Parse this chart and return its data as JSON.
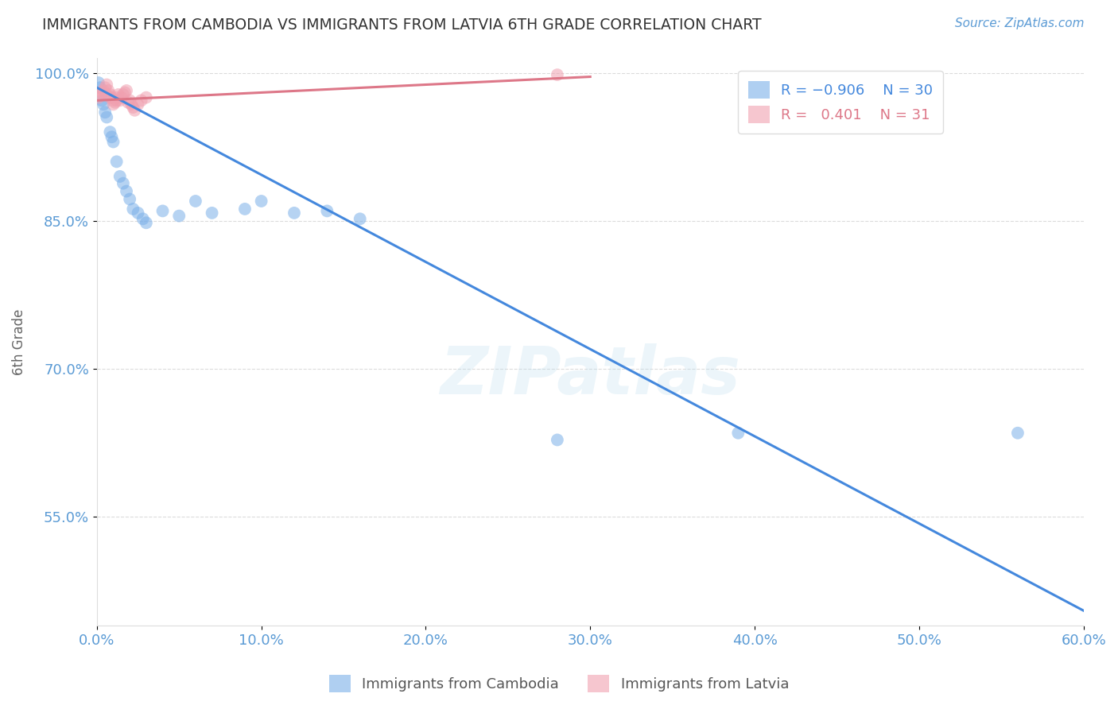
{
  "title": "IMMIGRANTS FROM CAMBODIA VS IMMIGRANTS FROM LATVIA 6TH GRADE CORRELATION CHART",
  "source_text": "Source: ZipAtlas.com",
  "ylabel": "6th Grade",
  "xlim": [
    0.0,
    0.6
  ],
  "ylim": [
    0.44,
    1.015
  ],
  "xticks": [
    0.0,
    0.1,
    0.2,
    0.3,
    0.4,
    0.5,
    0.6
  ],
  "xticklabels": [
    "0.0%",
    "10.0%",
    "20.0%",
    "30.0%",
    "40.0%",
    "50.0%",
    "60.0%"
  ],
  "yticks": [
    0.55,
    0.7,
    0.85,
    1.0
  ],
  "yticklabels": [
    "55.0%",
    "70.0%",
    "85.0%",
    "100.0%"
  ],
  "watermark": "ZIPatlas",
  "cambodia_x": [
    0.001,
    0.002,
    0.003,
    0.004,
    0.005,
    0.006,
    0.008,
    0.009,
    0.01,
    0.012,
    0.014,
    0.016,
    0.018,
    0.02,
    0.022,
    0.025,
    0.028,
    0.03,
    0.04,
    0.05,
    0.06,
    0.07,
    0.09,
    0.1,
    0.12,
    0.14,
    0.16,
    0.28,
    0.39,
    0.56
  ],
  "cambodia_y": [
    0.99,
    0.985,
    0.972,
    0.968,
    0.96,
    0.955,
    0.94,
    0.935,
    0.93,
    0.91,
    0.895,
    0.888,
    0.88,
    0.872,
    0.862,
    0.858,
    0.852,
    0.848,
    0.86,
    0.855,
    0.87,
    0.858,
    0.862,
    0.87,
    0.858,
    0.86,
    0.852,
    0.628,
    0.635,
    0.635
  ],
  "latvia_x": [
    0.001,
    0.002,
    0.003,
    0.004,
    0.005,
    0.006,
    0.007,
    0.008,
    0.009,
    0.01,
    0.011,
    0.012,
    0.013,
    0.014,
    0.015,
    0.016,
    0.017,
    0.018,
    0.019,
    0.02,
    0.021,
    0.022,
    0.023,
    0.025,
    0.027,
    0.03,
    0.28,
    0.01,
    0.012,
    0.008,
    0.006
  ],
  "latvia_y": [
    0.975,
    0.978,
    0.98,
    0.982,
    0.985,
    0.988,
    0.982,
    0.978,
    0.975,
    0.972,
    0.97,
    0.975,
    0.978,
    0.972,
    0.975,
    0.978,
    0.98,
    0.982,
    0.97,
    0.972,
    0.968,
    0.965,
    0.962,
    0.968,
    0.972,
    0.975,
    0.998,
    0.968,
    0.972,
    0.975,
    0.978
  ],
  "blue_color": "#7aafe8",
  "pink_color": "#f0a0b0",
  "blue_line_color": "#4488dd",
  "pink_line_color": "#dd7788",
  "background_color": "#ffffff",
  "grid_color": "#cccccc",
  "tick_label_color": "#5b9bd5",
  "title_color": "#333333",
  "ylabel_color": "#666666",
  "blue_line_x0": 0.0,
  "blue_line_y0": 0.985,
  "blue_line_x1": 0.6,
  "blue_line_y1": 0.455,
  "pink_line_x0": 0.0,
  "pink_line_y0": 0.972,
  "pink_line_x1": 0.3,
  "pink_line_y1": 0.996
}
